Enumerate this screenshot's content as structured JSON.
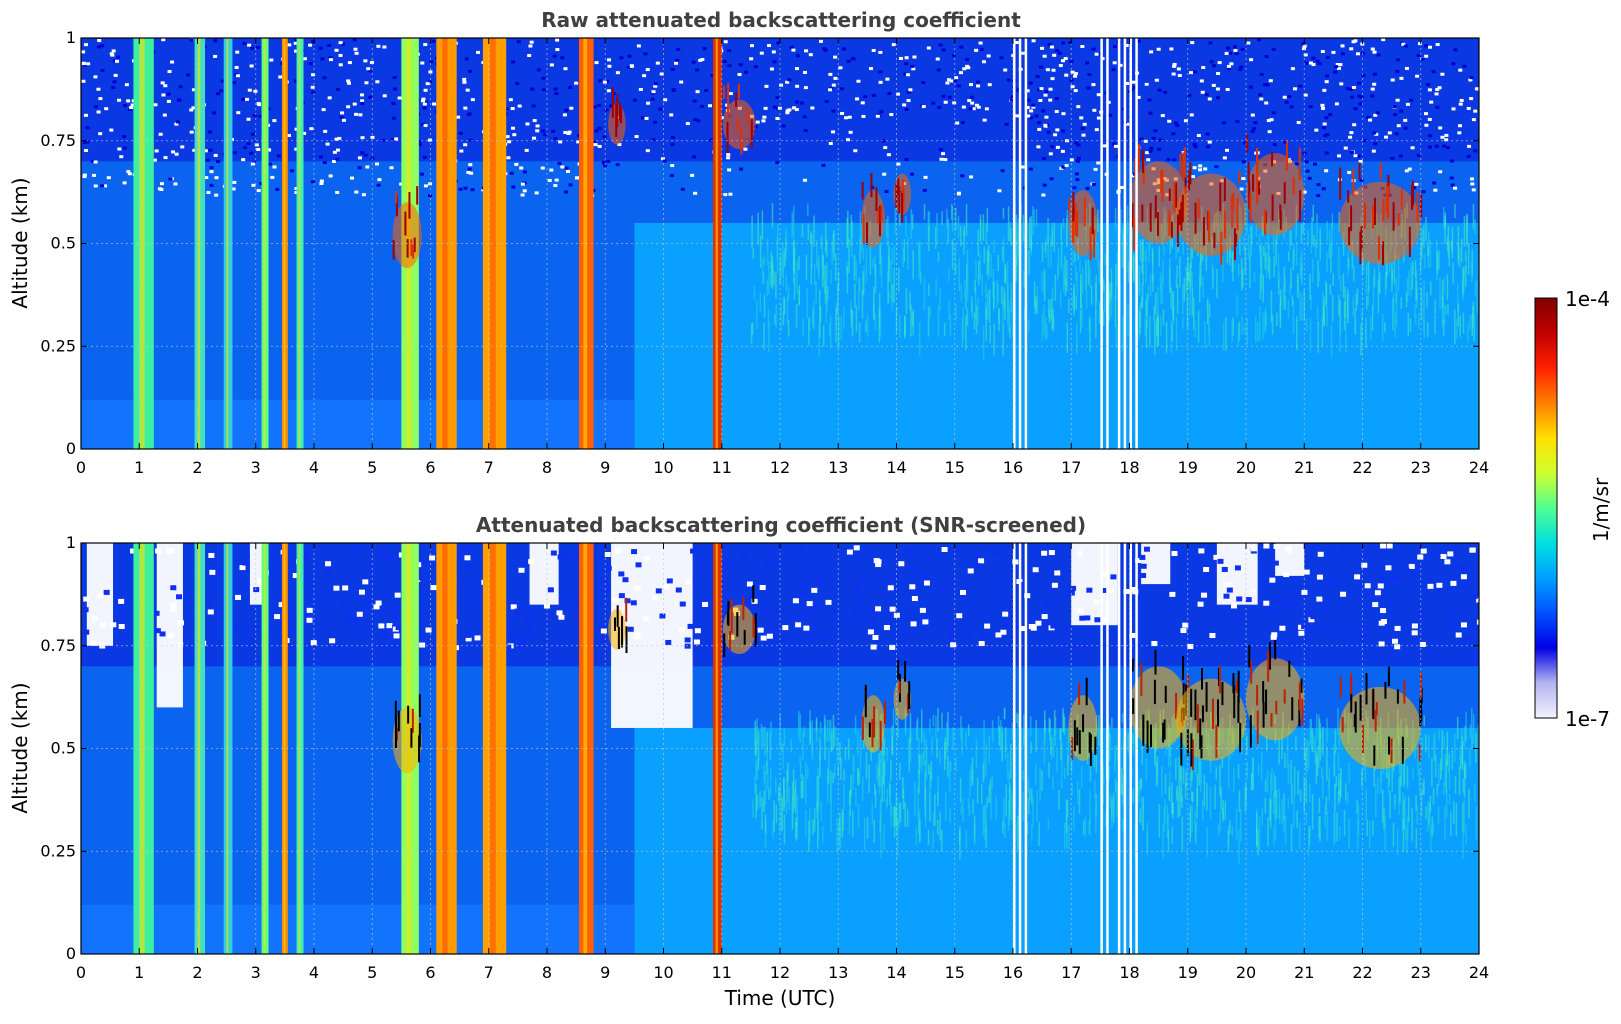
{
  "chart_data": [
    {
      "type": "heatmap",
      "title": "Raw attenuated backscattering coefficient",
      "ylabel": "Altitude (km)",
      "xlabel": "",
      "xlim": [
        0,
        24
      ],
      "ylim": [
        0,
        1
      ],
      "xticks": [
        "0",
        "1",
        "2",
        "3",
        "4",
        "5",
        "6",
        "7",
        "8",
        "9",
        "10",
        "11",
        "12",
        "13",
        "14",
        "15",
        "16",
        "17",
        "18",
        "19",
        "20",
        "21",
        "22",
        "23",
        "24"
      ],
      "yticks": [
        "0",
        "0.25",
        "0.5",
        "0.75",
        "1"
      ],
      "grid": true,
      "colormap": "jet",
      "colorscale": "log"
    },
    {
      "type": "heatmap",
      "title": "Attenuated backscattering coefficient (SNR-screened)",
      "ylabel": "Altitude (km)",
      "xlabel": "Time (UTC)",
      "xlim": [
        0,
        24
      ],
      "ylim": [
        0,
        1
      ],
      "xticks": [
        "0",
        "1",
        "2",
        "3",
        "4",
        "5",
        "6",
        "7",
        "8",
        "9",
        "10",
        "11",
        "12",
        "13",
        "14",
        "15",
        "16",
        "17",
        "18",
        "19",
        "20",
        "21",
        "22",
        "23",
        "24"
      ],
      "yticks": [
        "0",
        "0.25",
        "0.5",
        "0.75",
        "1"
      ],
      "grid": true,
      "colormap": "jet",
      "colorscale": "log"
    }
  ],
  "colorbar": {
    "label": "1/m/sr",
    "max_label": "1e-4",
    "min_label": "1e-7",
    "stops": [
      "#f2f2ff",
      "#b4b4f0",
      "#0000e6",
      "#0050ff",
      "#00a0ff",
      "#00e0e0",
      "#50ff90",
      "#d0ff30",
      "#ffe000",
      "#ff8000",
      "#ff2000",
      "#c00000",
      "#800000"
    ]
  },
  "features": {
    "vertical_bands": [
      {
        "t": 0.9,
        "w": 0.35,
        "color": "#3cf0a0"
      },
      {
        "t": 1.95,
        "w": 0.18,
        "color": "#40e0c0"
      },
      {
        "t": 2.45,
        "w": 0.15,
        "color": "#30d0e0"
      },
      {
        "t": 3.1,
        "w": 0.12,
        "color": "#60ff80"
      },
      {
        "t": 3.45,
        "w": 0.1,
        "color": "#ff9000"
      },
      {
        "t": 3.7,
        "w": 0.12,
        "color": "#40f0b0"
      },
      {
        "t": 5.5,
        "w": 0.3,
        "color": "#90ff60"
      },
      {
        "t": 6.1,
        "w": 0.35,
        "color": "#ff9a00"
      },
      {
        "t": 6.9,
        "w": 0.4,
        "color": "#ffa000"
      },
      {
        "t": 8.55,
        "w": 0.25,
        "color": "#ff6000"
      },
      {
        "t": 10.85,
        "w": 0.15,
        "color": "#e03000"
      }
    ],
    "cloud_patches": [
      {
        "t": 5.6,
        "alt": 0.52,
        "rt": 0.25,
        "ra": 0.08
      },
      {
        "t": 9.2,
        "alt": 0.79,
        "rt": 0.15,
        "ra": 0.05
      },
      {
        "t": 11.3,
        "alt": 0.79,
        "rt": 0.28,
        "ra": 0.06
      },
      {
        "t": 13.6,
        "alt": 0.56,
        "rt": 0.2,
        "ra": 0.07
      },
      {
        "t": 14.1,
        "alt": 0.62,
        "rt": 0.15,
        "ra": 0.05
      },
      {
        "t": 17.2,
        "alt": 0.55,
        "rt": 0.25,
        "ra": 0.08
      },
      {
        "t": 18.5,
        "alt": 0.6,
        "rt": 0.5,
        "ra": 0.1
      },
      {
        "t": 19.4,
        "alt": 0.57,
        "rt": 0.6,
        "ra": 0.1
      },
      {
        "t": 20.5,
        "alt": 0.62,
        "rt": 0.5,
        "ra": 0.1
      },
      {
        "t": 22.3,
        "alt": 0.55,
        "rt": 0.7,
        "ra": 0.1
      }
    ],
    "gaps": [
      16.0,
      16.1,
      16.2,
      17.5,
      17.6,
      17.8,
      17.9,
      18.0,
      18.1
    ]
  }
}
